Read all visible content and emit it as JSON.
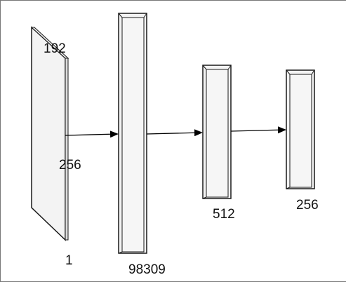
{
  "diagram": {
    "input_layer": {
      "height_label": "192",
      "width_label": "256",
      "depth_label": "1"
    },
    "layers": [
      {
        "size_label": "98309"
      },
      {
        "size_label": "512"
      },
      {
        "size_label": "256"
      }
    ],
    "colors": {
      "fill": "#f3f3f3",
      "stroke": "#1a1a1a",
      "text": "#111111"
    }
  }
}
